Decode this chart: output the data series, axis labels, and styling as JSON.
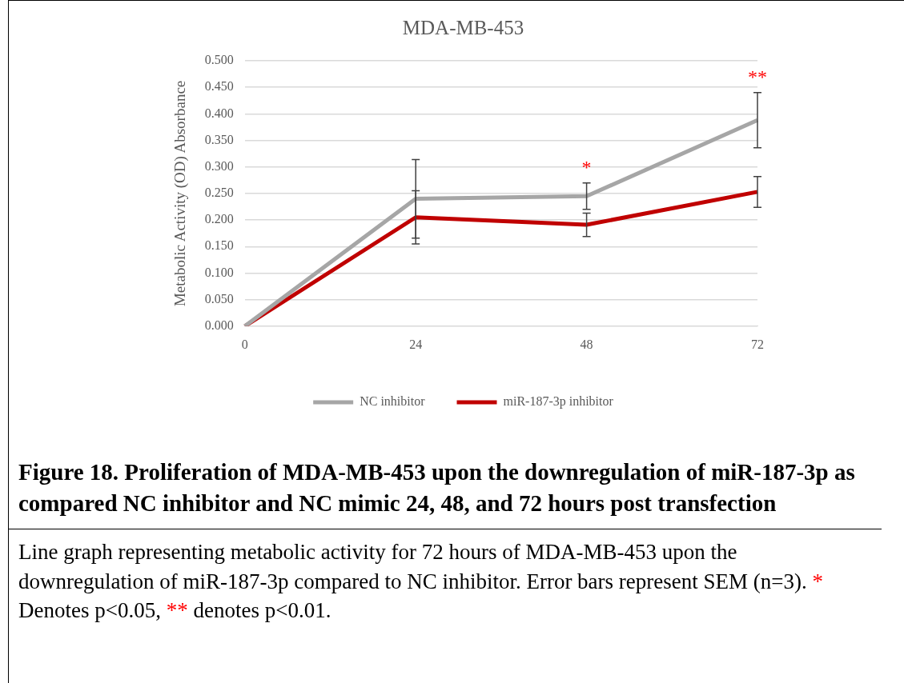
{
  "chart_data": {
    "type": "line",
    "title": "MDA-MB-453",
    "ylabel": "Metabolic Activity (OD) Absorbance",
    "categories": [
      "0",
      "24",
      "48",
      "72"
    ],
    "series": [
      {
        "name": "NC inhibitor",
        "color": "#a6a6a6",
        "values": [
          0,
          0.24,
          0.245,
          0.388
        ],
        "errors": [
          null,
          0.074,
          0.025,
          0.052
        ]
      },
      {
        "name": "miR-187-3p inhibitor",
        "color": "#c00000",
        "values": [
          0,
          0.205,
          0.191,
          0.253
        ],
        "errors": [
          null,
          0.05,
          0.022,
          0.029
        ]
      }
    ],
    "ylim": [
      0,
      0.5
    ],
    "yticks": [
      {
        "value": 0,
        "label": "0.000"
      },
      {
        "value": 0.05,
        "label": "0.050"
      },
      {
        "value": 0.1,
        "label": "0.100"
      },
      {
        "value": 0.15,
        "label": "0.150"
      },
      {
        "value": 0.2,
        "label": "0.200"
      },
      {
        "value": 0.25,
        "label": "0.250"
      },
      {
        "value": 0.3,
        "label": "0.300"
      },
      {
        "value": 0.35,
        "label": "0.350"
      },
      {
        "value": 0.4,
        "label": "0.400"
      },
      {
        "value": 0.45,
        "label": "0.450"
      },
      {
        "value": 0.5,
        "label": "0.500"
      }
    ],
    "grid": "y",
    "legend": "bottom",
    "marker": "none",
    "line_style": "solid",
    "annotations": [
      "*",
      "**",
      "Figure 18. Proliferation of MDA-MB-453 upon the downregulation of miR-187-3p as compared NC inhibitor and NC mimic 24, 48, and 72 hours post transfection",
      " Line graph representing metabolic activity for 72 hours of MDA-MB-453 upon the downregulation of miR-187-3p compared to NC inhibitor. Error bars represent SEM (n=3). * Denotes p<0.05, ** denotes p<0.01."
    ]
  }
}
